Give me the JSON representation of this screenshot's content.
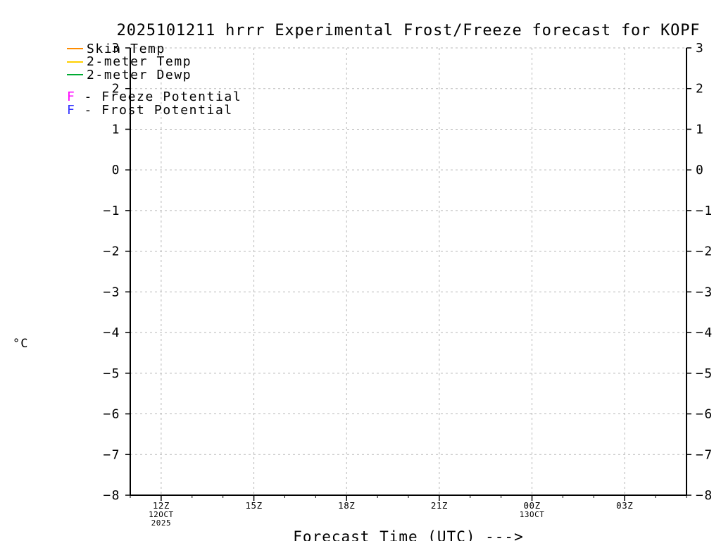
{
  "title": "2025101211 hrrr Experimental Frost/Freeze forecast for KOPF",
  "legend": {
    "line_entries": [
      {
        "label": "Skin Temp",
        "color": "#ff8c00"
      },
      {
        "label": "2-meter Temp",
        "color": "#ffd000"
      },
      {
        "label": "2-meter Dewp",
        "color": "#00aa33"
      }
    ],
    "marker_entries": [
      {
        "marker": "F",
        "label": "- Freeze Potential",
        "color": "#ff00ff"
      },
      {
        "marker": "F",
        "label": "- Frost Potential",
        "color": "#3333ff"
      }
    ]
  },
  "chart_data": {
    "type": "line",
    "title": "2025101211 hrrr Experimental Frost/Freeze forecast for KOPF",
    "xlabel": "Forecast Time (UTC) --->",
    "ylabel": "°C",
    "ylim": [
      -8,
      3
    ],
    "y_ticks": [
      3,
      2,
      1,
      0,
      -1,
      -2,
      -3,
      -4,
      -5,
      -6,
      -7,
      -8
    ],
    "x_axis_hours": [
      11,
      29
    ],
    "x_ticks": [
      {
        "hour": 12,
        "label": "12Z",
        "sub": [
          "12OCT",
          "2025"
        ]
      },
      {
        "hour": 15,
        "label": "15Z",
        "sub": []
      },
      {
        "hour": 18,
        "label": "18Z",
        "sub": []
      },
      {
        "hour": 21,
        "label": "21Z",
        "sub": []
      },
      {
        "hour": 24,
        "label": "00Z",
        "sub": [
          "13OCT"
        ]
      },
      {
        "hour": 27,
        "label": "03Z",
        "sub": []
      }
    ],
    "grid": true,
    "legend_position": "upper-left",
    "series": [
      {
        "name": "Skin Temp",
        "color": "#ff8c00",
        "x": [],
        "values": []
      },
      {
        "name": "2-meter Temp",
        "color": "#ffd000",
        "x": [],
        "values": []
      },
      {
        "name": "2-meter Dewp",
        "color": "#00aa33",
        "x": [],
        "values": []
      },
      {
        "name": "Freeze Potential",
        "color": "#ff00ff",
        "x": [],
        "values": []
      },
      {
        "name": "Frost Potential",
        "color": "#3333ff",
        "x": [],
        "values": []
      }
    ]
  }
}
